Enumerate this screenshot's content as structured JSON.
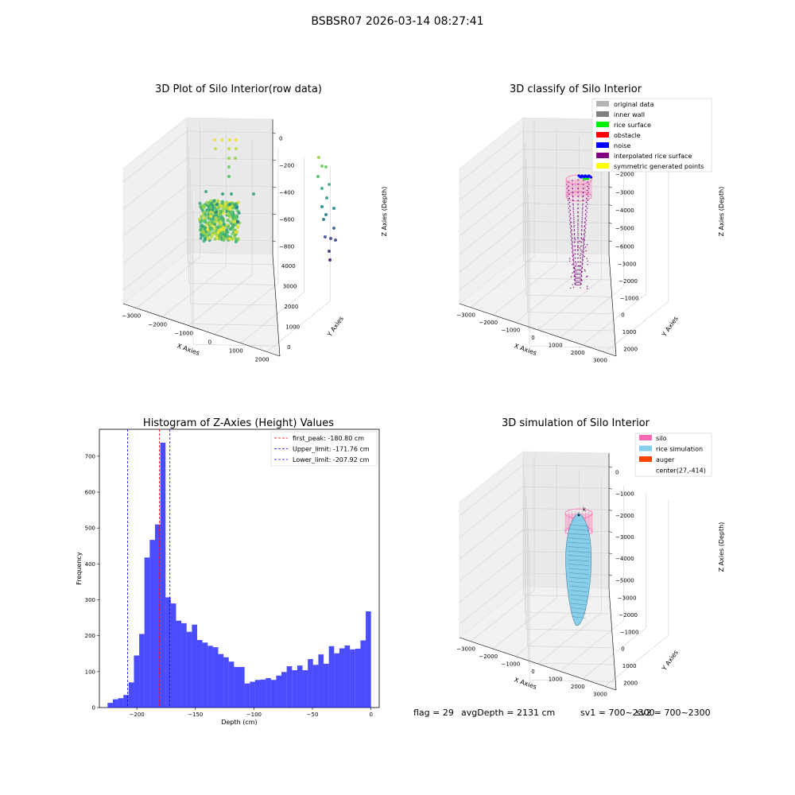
{
  "suptitle": "BSBSR07 2026-03-14 08:27:41",
  "panels": {
    "raw": {
      "title": "3D Plot of Silo Interior(row data)",
      "xlabel": "X Axies",
      "ylabel": "Y Axies",
      "zlabel": "Z Axies (Depth)",
      "x_ticks": [
        "−3000",
        "−2000",
        "−1000",
        "0",
        "1000",
        "2000"
      ],
      "y_ticks": [
        "0",
        "1000",
        "2000",
        "3000",
        "4000"
      ],
      "z_ticks": [
        "0",
        "−200",
        "−400",
        "−600",
        "−800"
      ]
    },
    "classify": {
      "title": "3D classify of Silo Interior",
      "xlabel": "X Axies",
      "ylabel": "Y Axies",
      "zlabel": "Z Axies (Depth)",
      "x_ticks": [
        "−3000",
        "−2000",
        "−1000",
        "0",
        "1000",
        "2000",
        "3000"
      ],
      "y_ticks": [
        "2000",
        "1000",
        "0",
        "−1000",
        "−2000",
        "−3000"
      ],
      "z_ticks": [
        "0",
        "−1000",
        "−2000",
        "−3000",
        "−4000",
        "−5000",
        "−6000"
      ],
      "legend": [
        {
          "label": "original data",
          "color": "#b3b3b3"
        },
        {
          "label": "inner wall",
          "color": "#808080"
        },
        {
          "label": "rice surface",
          "color": "#00ee00"
        },
        {
          "label": "obstacle",
          "color": "#ff0000"
        },
        {
          "label": "noise",
          "color": "#0000ff"
        },
        {
          "label": "interpolated rice surface",
          "color": "#800080"
        },
        {
          "label": "symmetric generated points",
          "color": "#ffff00"
        }
      ]
    },
    "simulation": {
      "title": "3D simulation of Silo Interior",
      "xlabel": "X Axies",
      "ylabel": "Y Axies",
      "zlabel": "Z Axies (Depth)",
      "x_ticks": [
        "−3000",
        "−2000",
        "−1000",
        "0",
        "1000",
        "2000",
        "3000"
      ],
      "y_ticks": [
        "2000",
        "1000",
        "0",
        "−1000",
        "−2000",
        "−3000"
      ],
      "z_ticks": [
        "0",
        "−1000",
        "−2000",
        "−3000",
        "−4000",
        "−5000"
      ],
      "legend": [
        {
          "label": "silo",
          "color": "#ff69b4"
        },
        {
          "label": "rice simulation",
          "color": "#87ceeb"
        },
        {
          "label": "auger",
          "color": "#ff4500"
        },
        {
          "label": "center(27,-414)",
          "color": ""
        }
      ],
      "auger_marker": "k"
    }
  },
  "footer": {
    "flag": "flag = 29",
    "avg_depth": "avgDepth = 2131 cm",
    "sv1": "sv1 = 700~2300",
    "sv2": "sv2 = 700~2300"
  },
  "chart_data": {
    "type": "bar",
    "title": "Histogram of Z-Axies (Height) Values",
    "xlabel": "Depth (cm)",
    "ylabel": "Frequency",
    "xlim": [
      -232,
      7
    ],
    "ylim": [
      0,
      775
    ],
    "x_ticks": [
      -200,
      -150,
      -100,
      -50,
      0
    ],
    "y_ticks": [
      0,
      100,
      200,
      300,
      400,
      500,
      600,
      700
    ],
    "bin_start": -225,
    "bin_width": 4.5,
    "bar_color": "#0000ff",
    "counts": [
      13,
      23,
      26,
      35,
      70,
      145,
      205,
      418,
      467,
      510,
      738,
      307,
      290,
      242,
      235,
      211,
      231,
      188,
      181,
      172,
      168,
      149,
      140,
      128,
      113,
      113,
      67,
      72,
      77,
      78,
      82,
      77,
      89,
      99,
      115,
      104,
      117,
      104,
      135,
      119,
      148,
      122,
      171,
      151,
      165,
      173,
      162,
      164,
      187,
      268
    ],
    "lines": [
      {
        "label": "first_peak: -180.80 cm",
        "x": -180.8,
        "color": "#ff0000"
      },
      {
        "label": "Upper_limit: -171.76 cm",
        "x": -171.76,
        "color": "#0000ff"
      },
      {
        "label": "Lower_limit: -207.92 cm",
        "x": -207.92,
        "color": "#0000ff"
      }
    ]
  }
}
